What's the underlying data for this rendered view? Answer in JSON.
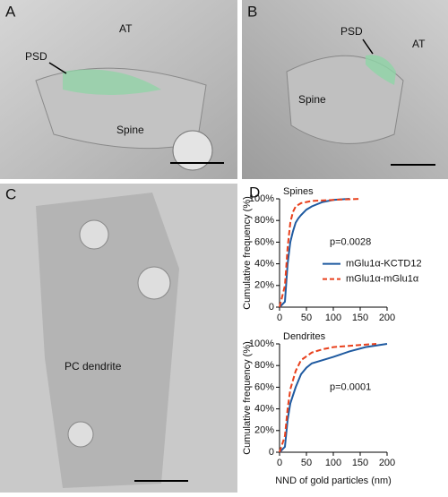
{
  "panels": {
    "a": {
      "label": "A",
      "at": "AT",
      "psd": "PSD",
      "spine": "Spine"
    },
    "b": {
      "label": "B",
      "psd": "PSD",
      "at": "AT",
      "spine": "Spine"
    },
    "c": {
      "label": "C",
      "dendrite": "PC dendrite"
    },
    "d": {
      "label": "D"
    }
  },
  "chart_data": [
    {
      "type": "line",
      "subtitle": "Spines",
      "ylabel": "Cumulative frequency (%)",
      "annotation": "p=0.0028",
      "legend": "right",
      "xlim": [
        0,
        200
      ],
      "xticks": [
        0,
        50,
        100,
        150,
        200
      ],
      "ylim": [
        0,
        100
      ],
      "yticks": [
        0,
        {
          "value": 20,
          "label": "20%"
        },
        {
          "value": 40,
          "label": "40%"
        },
        {
          "value": 60,
          "label": "60%"
        },
        {
          "value": 80,
          "label": "80%"
        },
        {
          "value": 100,
          "label": "100%"
        }
      ],
      "series": [
        {
          "name": "mGlu1α-KCTD12",
          "color": "#1f5aa0",
          "dash": false,
          "x": [
            0,
            10,
            15,
            20,
            25,
            30,
            35,
            40,
            50,
            60,
            80,
            100,
            130
          ],
          "values": [
            0,
            5,
            40,
            60,
            70,
            78,
            82,
            85,
            90,
            93,
            97,
            99,
            100
          ]
        },
        {
          "name": "mGlu1α-mGlu1α",
          "color": "#e8401c",
          "dash": true,
          "x": [
            0,
            10,
            15,
            20,
            25,
            30,
            40,
            60,
            100,
            150
          ],
          "values": [
            0,
            20,
            55,
            78,
            88,
            93,
            96,
            98,
            99,
            100
          ]
        }
      ]
    },
    {
      "type": "line",
      "subtitle": "Dendrites",
      "ylabel": "Cumulative frequency (%)",
      "xlabel": "NND of gold particles (nm)",
      "annotation": "p=0.0001",
      "xlim": [
        0,
        200
      ],
      "xticks": [
        0,
        50,
        100,
        150,
        200
      ],
      "ylim": [
        0,
        100
      ],
      "yticks": [
        0,
        {
          "value": 20,
          "label": "20%"
        },
        {
          "value": 40,
          "label": "40%"
        },
        {
          "value": 60,
          "label": "60%"
        },
        {
          "value": 80,
          "label": "80%"
        },
        {
          "value": 100,
          "label": "100%"
        }
      ],
      "series": [
        {
          "name": "mGlu1α-KCTD12",
          "color": "#1f5aa0",
          "dash": false,
          "x": [
            0,
            10,
            15,
            20,
            30,
            40,
            50,
            60,
            80,
            100,
            130,
            160,
            200
          ],
          "values": [
            0,
            5,
            30,
            45,
            60,
            72,
            78,
            82,
            85,
            88,
            93,
            97,
            100
          ]
        },
        {
          "name": "mGlu1α-mGlu1α",
          "color": "#e8401c",
          "dash": true,
          "x": [
            0,
            10,
            15,
            20,
            30,
            40,
            60,
            80,
            100,
            150,
            180
          ],
          "values": [
            0,
            15,
            40,
            58,
            75,
            85,
            92,
            95,
            97,
            99,
            100
          ]
        }
      ]
    }
  ]
}
